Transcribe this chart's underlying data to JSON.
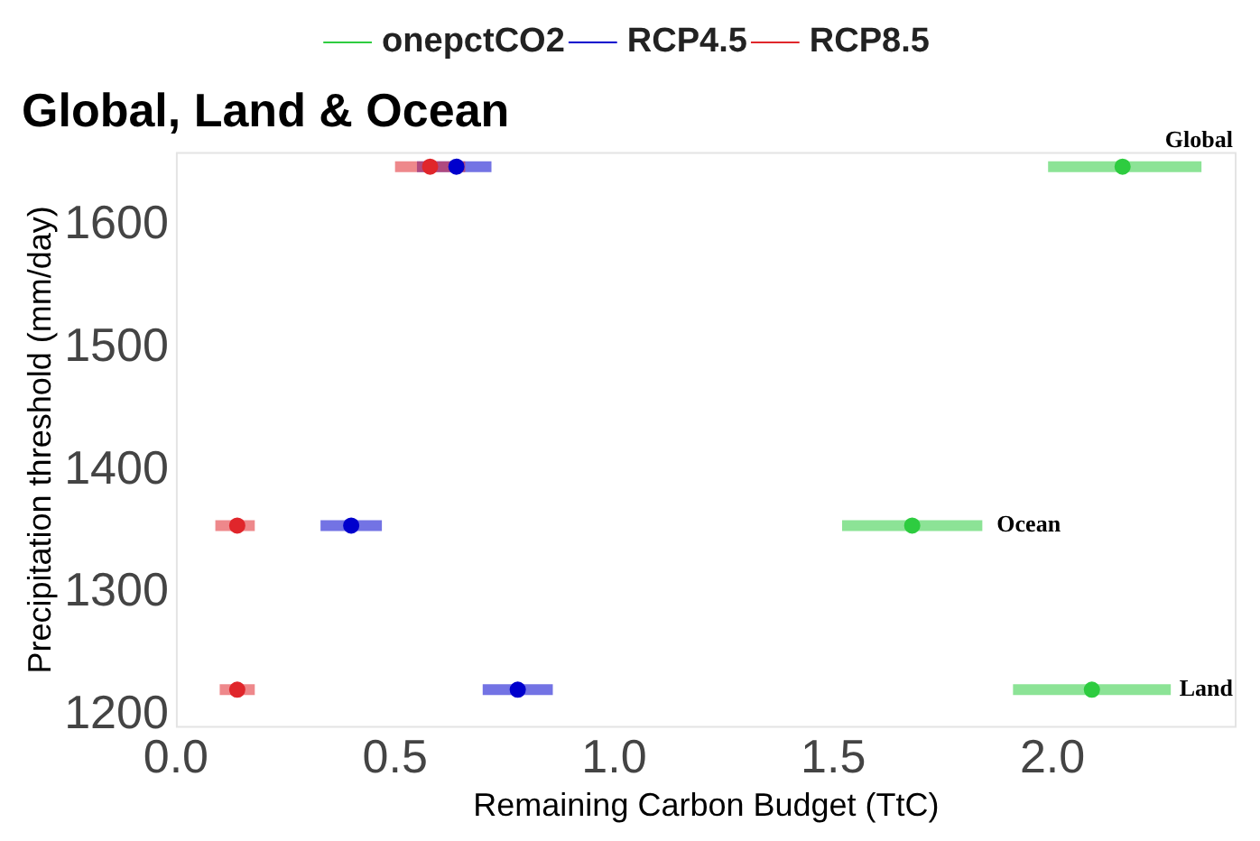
{
  "chart_data": {
    "type": "scatter",
    "title": "Global, Land & Ocean",
    "xlabel": "Remaining Carbon Budget (TtC)",
    "ylabel": "Precipitation threshold (mm/day)",
    "series": [
      {
        "name": "onepctCO2",
        "color": "#2ecc40",
        "x": [
          2.16,
          1.68,
          2.09
        ],
        "values": [
          1648,
          1355,
          1221
        ],
        "xerrors": [
          [
            1.99,
            2.34
          ],
          [
            1.52,
            1.84
          ],
          [
            1.91,
            2.27
          ]
        ]
      },
      {
        "name": "RCP4.5",
        "color": "#0000cd",
        "x": [
          0.64,
          0.4,
          0.78
        ],
        "values": [
          1648,
          1355,
          1221
        ],
        "xerrors": [
          [
            0.55,
            0.72
          ],
          [
            0.33,
            0.47
          ],
          [
            0.7,
            0.86
          ]
        ]
      },
      {
        "name": "RCP8.5",
        "color": "#e0262b",
        "x": [
          0.58,
          0.14,
          0.14
        ],
        "values": [
          1648,
          1355,
          1221
        ],
        "xerrors": [
          [
            0.5,
            0.66
          ],
          [
            0.09,
            0.18
          ],
          [
            0.1,
            0.18
          ]
        ]
      }
    ],
    "annotations": [
      "Global",
      "Ocean",
      "Land"
    ],
    "xlim": [
      0,
      2.42
    ],
    "xticks": [
      {
        "value": 0,
        "label": "0.0"
      },
      0.5,
      {
        "value": 1,
        "label": "1.0"
      },
      1.5,
      {
        "value": 2,
        "label": "2.0"
      }
    ],
    "ylim": [
      1190,
      1660
    ],
    "yticks": [
      1200,
      1300,
      1400,
      1500,
      1600
    ],
    "grid": false,
    "legend": "top",
    "marker": "circle"
  }
}
